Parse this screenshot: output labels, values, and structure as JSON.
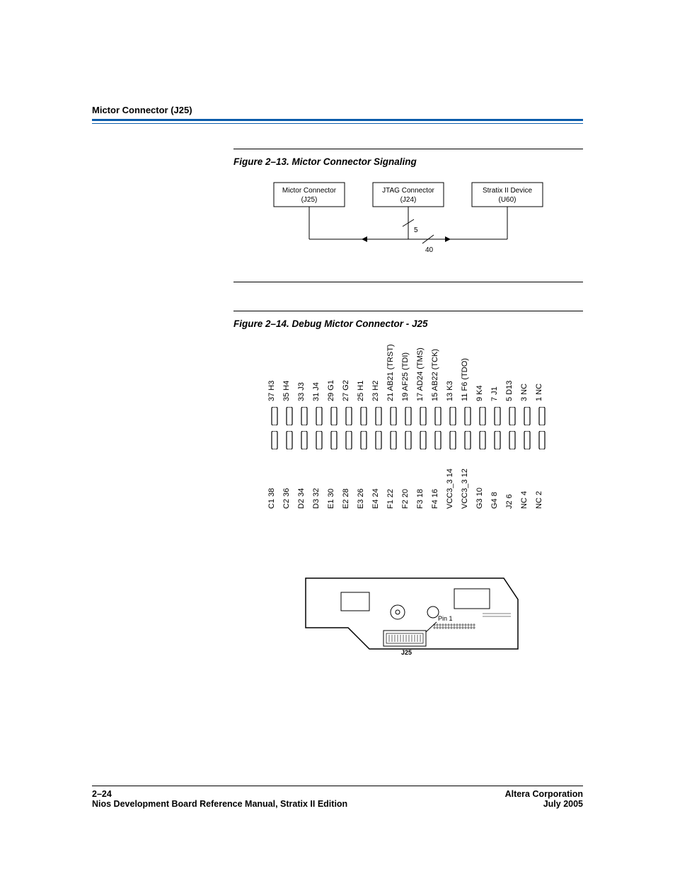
{
  "header": {
    "section_title": "Mictor Connector (J25)"
  },
  "figure1": {
    "caption": "Figure 2–13. Mictor Connector Signaling",
    "blocks": {
      "mictor": {
        "line1": "Mictor Connector",
        "line2": "(J25)"
      },
      "jtag": {
        "line1": "JTAG Connector",
        "line2": "(J24)"
      },
      "device": {
        "line1": "Stratix II Device",
        "line2": "(U60)"
      }
    },
    "edge_labels": {
      "jtag_to_arrow": "5",
      "jtag_to_device": "40"
    }
  },
  "figure2": {
    "caption": "Figure 2–14. Debug Mictor Connector - J25",
    "top_labels": [
      "37 H3",
      "35 H4",
      "33 J3",
      "31 J4",
      "29 G1",
      "27 G2",
      "25 H1",
      "23 H2",
      "21 AB21 (TRST)",
      "19 AF25 (TDI)",
      "17 AD24 (TMS)",
      "15 AB22 (TCK)",
      "13 K3",
      "11 F6 (TDO)",
      "9 K4",
      "7 J1",
      "5 D13",
      "3 NC",
      "1 NC"
    ],
    "bottom_labels": [
      "C1 38",
      "C2 36",
      "D2 34",
      "D3 32",
      "E1 30",
      "E2 28",
      "E3 26",
      "E4 24",
      "F1 22",
      "F2 20",
      "F3 18",
      "F4 16",
      "VCC3_3 14",
      "VCC3_3 12",
      "G3 10",
      "G4 8",
      "J2 6",
      "NC 4",
      "NC 2"
    ],
    "pad_count": 19,
    "board_labels": {
      "pin1": "Pin 1",
      "ref": "J25"
    }
  },
  "footer": {
    "left_top": "2–24",
    "left_bot": "Nios Development Board Reference Manual, Stratix II Edition",
    "right_top": "Altera Corporation",
    "right_bot": "July 2005"
  }
}
